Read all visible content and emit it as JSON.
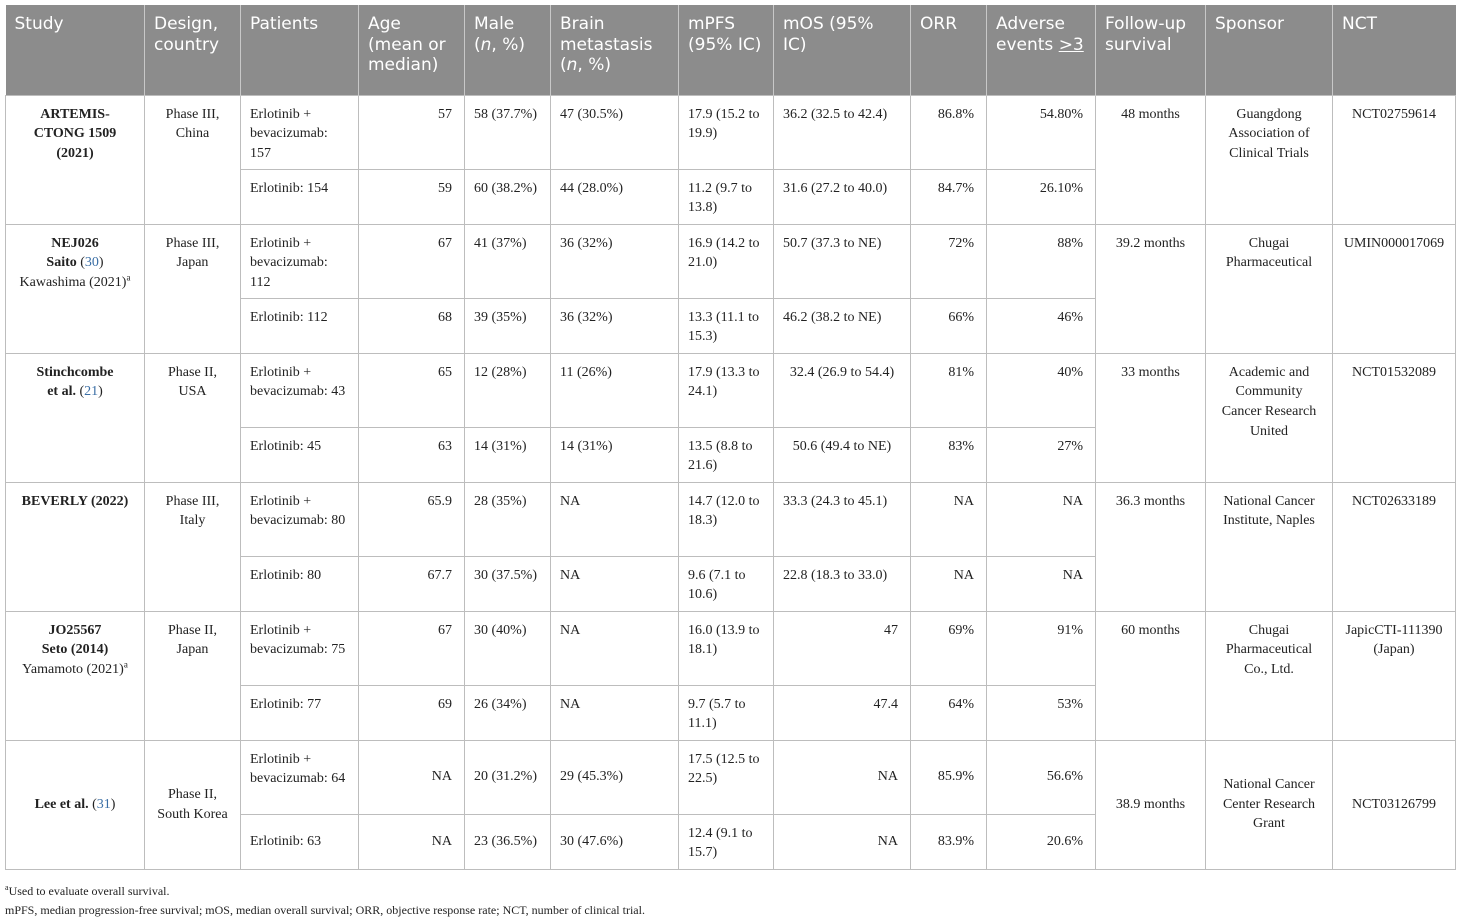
{
  "headers": [
    "Study",
    "Design, country",
    "Patients",
    "Age (mean or median)",
    "Male (n, %)",
    "Brain metastasis (n, %)",
    "mPFS (95% IC)",
    "mOS (95% IC)",
    "ORR",
    "Adverse events >3",
    "Follow-up survival",
    "Sponsor",
    "NCT"
  ],
  "header_parts": {
    "male_pre": "Male ",
    "male_n": "n",
    "male_post": ", %)",
    "brain_pre": "Brain metastasis (",
    "brain_n": "n",
    "brain_post": ", %)",
    "ae_pre": "Adverse events ",
    "ae_sym": ">3"
  },
  "studies": [
    {
      "name_lines": [
        "ARTEMIS-CTONG 1509 (2021)"
      ],
      "design": "Phase III, China",
      "follow_up": "48 months",
      "sponsor": "Guangdong Association of Clinical Trials",
      "nct": "NCT02759614",
      "arms": [
        {
          "patients": "Erlotinib + bevacizumab: 157",
          "age": "57",
          "male": "58 (37.7%)",
          "brain": "47 (30.5%)",
          "mpfs": "17.9 (15.2 to 19.9)",
          "mos": "36.2 (32.5 to 42.4)",
          "orr": "86.8%",
          "ae": "54.80%"
        },
        {
          "patients": "Erlotinib: 154",
          "age": "59",
          "male": "60 (38.2%)",
          "brain": "44 (28.0%)",
          "mpfs": "11.2 (9.7 to 13.8)",
          "mos": "31.6 (27.2 to 40.0)",
          "orr": "84.7%",
          "ae": "26.10%"
        }
      ]
    },
    {
      "name_bold_1": "NEJ026",
      "name_bold_2": "Saito",
      "name_ref": "30",
      "name_plain": "Kawashima (2021)",
      "name_sup": "a",
      "design": "Phase III, Japan",
      "follow_up": "39.2 months",
      "sponsor": "Chugai Pharmaceutical",
      "nct": "UMIN000017069",
      "arms": [
        {
          "patients": "Erlotinib + bevacizumab: 112",
          "age": "67",
          "male": "41 (37%)",
          "brain": "36 (32%)",
          "mpfs": "16.9 (14.2 to 21.0)",
          "mos": "50.7 (37.3 to NE)",
          "orr": "72%",
          "ae": "88%"
        },
        {
          "patients": "Erlotinib: 112",
          "age": "68",
          "male": "39 (35%)",
          "brain": "36 (32%)",
          "mpfs": "13.3 (11.1 to 15.3)",
          "mos": "46.2 (38.2 to NE)",
          "orr": "66%",
          "ae": "46%"
        }
      ]
    },
    {
      "name_bold_1": "Stinchcombe",
      "name_bold_2": "et al.",
      "name_ref": "21",
      "design": "Phase II, USA",
      "follow_up": "33 months",
      "sponsor": "Academic and Community Cancer Research United",
      "nct": "NCT01532089",
      "arms": [
        {
          "patients": "Erlotinib + bevacizumab: 43",
          "age": "65",
          "male": "12 (28%)",
          "brain": "11 (26%)",
          "mpfs": "17.9 (13.3 to 24.1)",
          "mos": "32.4 (26.9 to 54.4)",
          "orr": "81%",
          "ae": "40%"
        },
        {
          "patients": "Erlotinib: 45",
          "age": "63",
          "male": "14 (31%)",
          "brain": "14 (31%)",
          "mpfs": "13.5 (8.8 to 21.6)",
          "mos": "50.6 (49.4 to NE)",
          "orr": "83%",
          "ae": "27%"
        }
      ]
    },
    {
      "name_bold_1": "BEVERLY (2022)",
      "design": "Phase III, Italy",
      "follow_up": "36.3 months",
      "sponsor": "National Cancer Institute, Naples",
      "nct": "NCT02633189",
      "arms": [
        {
          "patients": "Erlotinib + bevacizumab: 80",
          "age": "65.9",
          "male": "28 (35%)",
          "brain": "NA",
          "mpfs": "14.7 (12.0 to 18.3)",
          "mos": "33.3 (24.3 to 45.1)",
          "orr": "NA",
          "ae": "NA"
        },
        {
          "patients": "Erlotinib: 80",
          "age": "67.7",
          "male": "30 (37.5%)",
          "brain": "NA",
          "mpfs": "9.6 (7.1 to 10.6)",
          "mos": "22.8 (18.3 to 33.0)",
          "orr": "NA",
          "ae": "NA"
        }
      ]
    },
    {
      "name_bold_1": "JO25567",
      "name_bold_2": "Seto (2014)",
      "name_plain": "Yamamoto (2021)",
      "name_sup": "a",
      "design": "Phase II, Japan",
      "follow_up": "60 months",
      "sponsor": "Chugai Pharmaceutical Co., Ltd.",
      "nct": "JapicCTI-111390 (Japan)",
      "arms": [
        {
          "patients": "Erlotinib + bevacizumab: 75",
          "age": "67",
          "male": "30 (40%)",
          "brain": "NA",
          "mpfs": "16.0 (13.9 to 18.1)",
          "mos": "47",
          "orr": "69%",
          "ae": "91%"
        },
        {
          "patients": "Erlotinib: 77",
          "age": "69",
          "male": "26 (34%)",
          "brain": "NA",
          "mpfs": "9.7 (5.7 to 11.1)",
          "mos": "47.4",
          "orr": "64%",
          "ae": "53%"
        }
      ]
    },
    {
      "name_bold_1": "Lee et al.",
      "name_ref": "31",
      "design": "Phase II, South Korea",
      "follow_up": "38.9 months",
      "sponsor": "National Cancer Center Research Grant",
      "nct": "NCT03126799",
      "arms": [
        {
          "patients": "Erlotinib + bevacizumab: 64",
          "age": "NA",
          "male": "20 (31.2%)",
          "brain": "29 (45.3%)",
          "mpfs": "17.5 (12.5 to 22.5)",
          "mos": "NA",
          "orr": "85.9%",
          "ae": "56.6%"
        },
        {
          "patients": "Erlotinib: 63",
          "age": "NA",
          "male": "23 (36.5%)",
          "brain": "30 (47.6%)",
          "mpfs": "12.4 (9.1 to 15.7)",
          "mos": "NA",
          "orr": "83.9%",
          "ae": "20.6%"
        }
      ]
    }
  ],
  "footnotes": {
    "a_sup": "a",
    "a_text": "Used to evaluate overall survival.",
    "abbrev": "mPFS, median progression-free survival; mOS, median overall survival; ORR, objective response rate; NCT, number of clinical trial."
  }
}
